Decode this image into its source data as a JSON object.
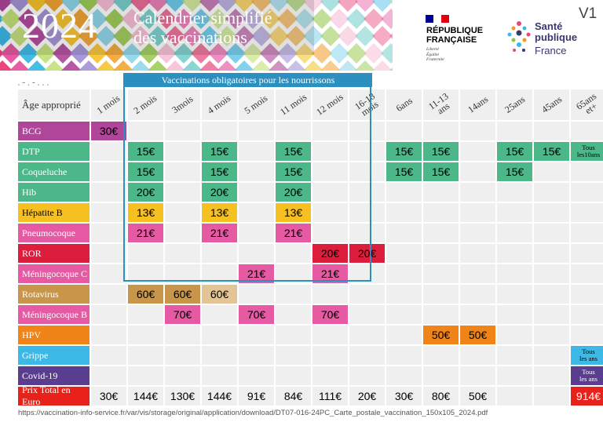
{
  "header": {
    "year": "2024",
    "title_line1": "Calendrier simplifié",
    "title_line2": "des vaccinations",
    "dots": ".-.-...",
    "version": "V1"
  },
  "republique": {
    "name_line1": "RÉPUBLIQUE",
    "name_line2": "FRANÇAISE",
    "motto": [
      "Liberté",
      "Égalité",
      "Fraternité"
    ]
  },
  "sante_publique": {
    "name_line1": "Santé",
    "name_line2": "publique",
    "name_line3": "France"
  },
  "obligatory_label": "Vaccinations obligatoires pour les nourrissons",
  "table": {
    "corner_label": "Âge approprié",
    "ages": [
      "1 mois",
      "2 mois",
      "3mois",
      "4 mois",
      "5 mois",
      "11 mois",
      "12 mois",
      "16-18\nmois",
      "6ans",
      "11-13\nans",
      "14ans",
      "25ans",
      "45ans",
      "65ans\net+"
    ],
    "rows": [
      {
        "label": "BCG",
        "color": "#b0469a",
        "cells": [
          "30€",
          "",
          "",
          "",
          "",
          "",
          "",
          "",
          "",
          "",
          "",
          "",
          "",
          ""
        ]
      },
      {
        "label": "DTP",
        "color": "#4cb88a",
        "cells": [
          "",
          "15€",
          "",
          "15€",
          "",
          "15€",
          "",
          "",
          "15€",
          "15€",
          "",
          "15€",
          "15€",
          "Tous\nles10ans"
        ]
      },
      {
        "label": "Coqueluche",
        "color": "#4cb88a",
        "cells": [
          "",
          "15€",
          "",
          "15€",
          "",
          "15€",
          "",
          "",
          "15€",
          "15€",
          "",
          "15€",
          "",
          ""
        ]
      },
      {
        "label": "Hib",
        "color": "#4cb88a",
        "cells": [
          "",
          "20€",
          "",
          "20€",
          "",
          "20€",
          "",
          "",
          "",
          "",
          "",
          "",
          "",
          ""
        ]
      },
      {
        "label": "Hépatite B",
        "color": "#f6c021",
        "cells": [
          "",
          "13€",
          "",
          "13€",
          "",
          "13€",
          "",
          "",
          "",
          "",
          "",
          "",
          "",
          ""
        ]
      },
      {
        "label": "Pneumocoque",
        "color": "#e55aa3",
        "cells": [
          "",
          "21€",
          "",
          "21€",
          "",
          "21€",
          "",
          "",
          "",
          "",
          "",
          "",
          "",
          ""
        ]
      },
      {
        "label": "ROR",
        "color": "#dc1e3c",
        "cells": [
          "",
          "",
          "",
          "",
          "",
          "",
          "20€",
          "20€",
          "",
          "",
          "",
          "",
          "",
          ""
        ]
      },
      {
        "label": "Méningocoque C",
        "color": "#e55aa3",
        "cells": [
          "",
          "",
          "",
          "",
          "21€",
          "",
          "21€",
          "",
          "",
          "",
          "",
          "",
          "",
          ""
        ]
      },
      {
        "label": "Rotavirus",
        "color": "#c8964b",
        "cells": [
          "",
          "60€",
          "60€",
          "60€",
          "",
          "",
          "",
          "",
          "",
          "",
          "",
          "",
          "",
          ""
        ]
      },
      {
        "label": "Méningocoque B",
        "color": "#e55aa3",
        "cells": [
          "",
          "",
          "70€",
          "",
          "70€",
          "",
          "70€",
          "",
          "",
          "",
          "",
          "",
          "",
          ""
        ]
      },
      {
        "label": "HPV",
        "color": "#f08418",
        "cells": [
          "",
          "",
          "",
          "",
          "",
          "",
          "",
          "",
          "",
          "50€",
          "50€",
          "",
          "",
          ""
        ]
      },
      {
        "label": "Grippe",
        "color": "#3cb9e6",
        "cells": [
          "",
          "",
          "",
          "",
          "",
          "",
          "",
          "",
          "",
          "",
          "",
          "",
          "",
          "Tous\nles ans"
        ]
      },
      {
        "label": "Covid-19",
        "color": "#5a3d8f",
        "cells": [
          "",
          "",
          "",
          "",
          "",
          "",
          "",
          "",
          "",
          "",
          "",
          "",
          "",
          "Tous\nles ans"
        ]
      }
    ],
    "total": {
      "label": "Prix Total en Euro",
      "color": "#e8221b",
      "cells": [
        "30€",
        "144€",
        "130€",
        "144€",
        "91€",
        "84€",
        "111€",
        "20€",
        "30€",
        "80€",
        "50€",
        "",
        "",
        "914€"
      ]
    }
  },
  "source_url": "https://vaccination-info-service.fr/var/vis/storage/original/application/download/DT07-016-24PC_Carte_postale_vaccination_150x105_2024.pdf"
}
